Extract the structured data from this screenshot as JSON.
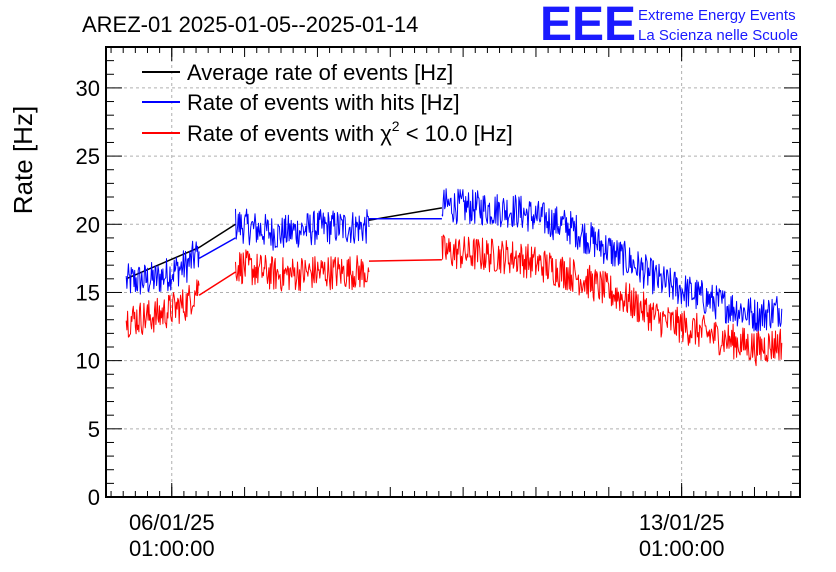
{
  "header": {
    "title": "AREZ-01 2025-01-05--2025-01-14",
    "logo_text": "EEE",
    "logo_line1": "Extreme Energy Events",
    "logo_line2": "La Scienza nelle Scuole"
  },
  "colors": {
    "average": "#000000",
    "hits": "#0000ff",
    "chi2": "#ff0000",
    "logo": "#1a1aff"
  },
  "chart_data": {
    "type": "line",
    "title": "AREZ-01 2025-01-05--2025-01-14",
    "ylabel": "Rate [Hz]",
    "xlabel": "",
    "ylim": [
      0,
      33
    ],
    "xlim_days": [
      "2025-01-05T03:20",
      "2025-01-14T16:00"
    ],
    "y_ticks": [
      "0",
      "5",
      "10",
      "15",
      "20",
      "25",
      "30"
    ],
    "x_ticks": [
      {
        "date": "2025-01-06T01:00",
        "line1": "06/01/25",
        "line2": "01:00:00"
      },
      {
        "date": "2025-01-13T01:00",
        "line1": "13/01/25",
        "line2": "01:00:00"
      }
    ],
    "grid": true,
    "legend_position": "top-left",
    "legend": {
      "average": "Average rate of events [Hz]",
      "hits": "Rate of events with hits [Hz]",
      "chi2_prefix": "Rate of events with ",
      "chi2_symbol": "χ",
      "chi2_sup": "2",
      "chi2_suffix": " < 10.0 [Hz]"
    },
    "series": [
      {
        "name": "Average rate of events [Hz]",
        "key": "average",
        "segments": [
          {
            "x": [
              "2025-01-05T10:00",
              "2025-01-06T10:00"
            ],
            "y": [
              16.0,
              18.3
            ]
          },
          {
            "x": [
              "2025-01-06T10:00",
              "2025-01-06T22:00"
            ],
            "y": [
              18.3,
              20.0
            ]
          },
          {
            "x": [
              "2025-01-08T18:00",
              "2025-01-09T18:00"
            ],
            "y": [
              20.3,
              21.2
            ]
          }
        ]
      },
      {
        "name": "Rate of events with hits [Hz]",
        "key": "hits",
        "noise": 1.3,
        "segments": [
          {
            "x": [
              "2025-01-05T10:00",
              "2025-01-05T20:00",
              "2025-01-06T06:00",
              "2025-01-06T10:00"
            ],
            "y": [
              15.8,
              16.0,
              17.0,
              18.0
            ]
          },
          {
            "x": [
              "2025-01-06T10:00",
              "2025-01-06T22:00"
            ],
            "y": [
              17.5,
              19.0
            ]
          },
          {
            "x": [
              "2025-01-06T22:00",
              "2025-01-07T12:00",
              "2025-01-08T02:00",
              "2025-01-08T18:00"
            ],
            "y": [
              20.0,
              19.3,
              19.8,
              19.8
            ]
          },
          {
            "x": [
              "2025-01-08T18:00",
              "2025-01-09T18:00"
            ],
            "y": [
              20.4,
              20.4
            ]
          },
          {
            "x": [
              "2025-01-09T18:00",
              "2025-01-10T18:00",
              "2025-01-11T12:00",
              "2025-01-12T06:00",
              "2025-01-12T18:00",
              "2025-01-13T12:00",
              "2025-01-14T02:00",
              "2025-01-14T10:00"
            ],
            "y": [
              21.4,
              21.0,
              19.8,
              17.5,
              15.8,
              14.3,
              13.3,
              13.8
            ]
          }
        ]
      },
      {
        "name": "Rate of events with χ2 < 10.0 [Hz]",
        "key": "chi2",
        "noise": 1.3,
        "segments": [
          {
            "x": [
              "2025-01-05T10:00",
              "2025-01-05T20:00",
              "2025-01-06T06:00",
              "2025-01-06T10:00"
            ],
            "y": [
              13.0,
              13.3,
              14.2,
              15.5
            ]
          },
          {
            "x": [
              "2025-01-06T10:00",
              "2025-01-06T22:00"
            ],
            "y": [
              14.8,
              16.5
            ]
          },
          {
            "x": [
              "2025-01-06T22:00",
              "2025-01-07T12:00",
              "2025-01-08T02:00",
              "2025-01-08T18:00"
            ],
            "y": [
              17.0,
              16.3,
              16.5,
              16.5
            ]
          },
          {
            "x": [
              "2025-01-08T18:00",
              "2025-01-09T18:00"
            ],
            "y": [
              17.3,
              17.4
            ]
          },
          {
            "x": [
              "2025-01-09T18:00",
              "2025-01-10T18:00",
              "2025-01-11T12:00",
              "2025-01-12T06:00",
              "2025-01-12T18:00",
              "2025-01-13T12:00",
              "2025-01-14T02:00",
              "2025-01-14T10:00"
            ],
            "y": [
              18.0,
              17.6,
              16.4,
              14.6,
              13.0,
              11.8,
              10.9,
              11.3
            ]
          }
        ]
      }
    ]
  }
}
